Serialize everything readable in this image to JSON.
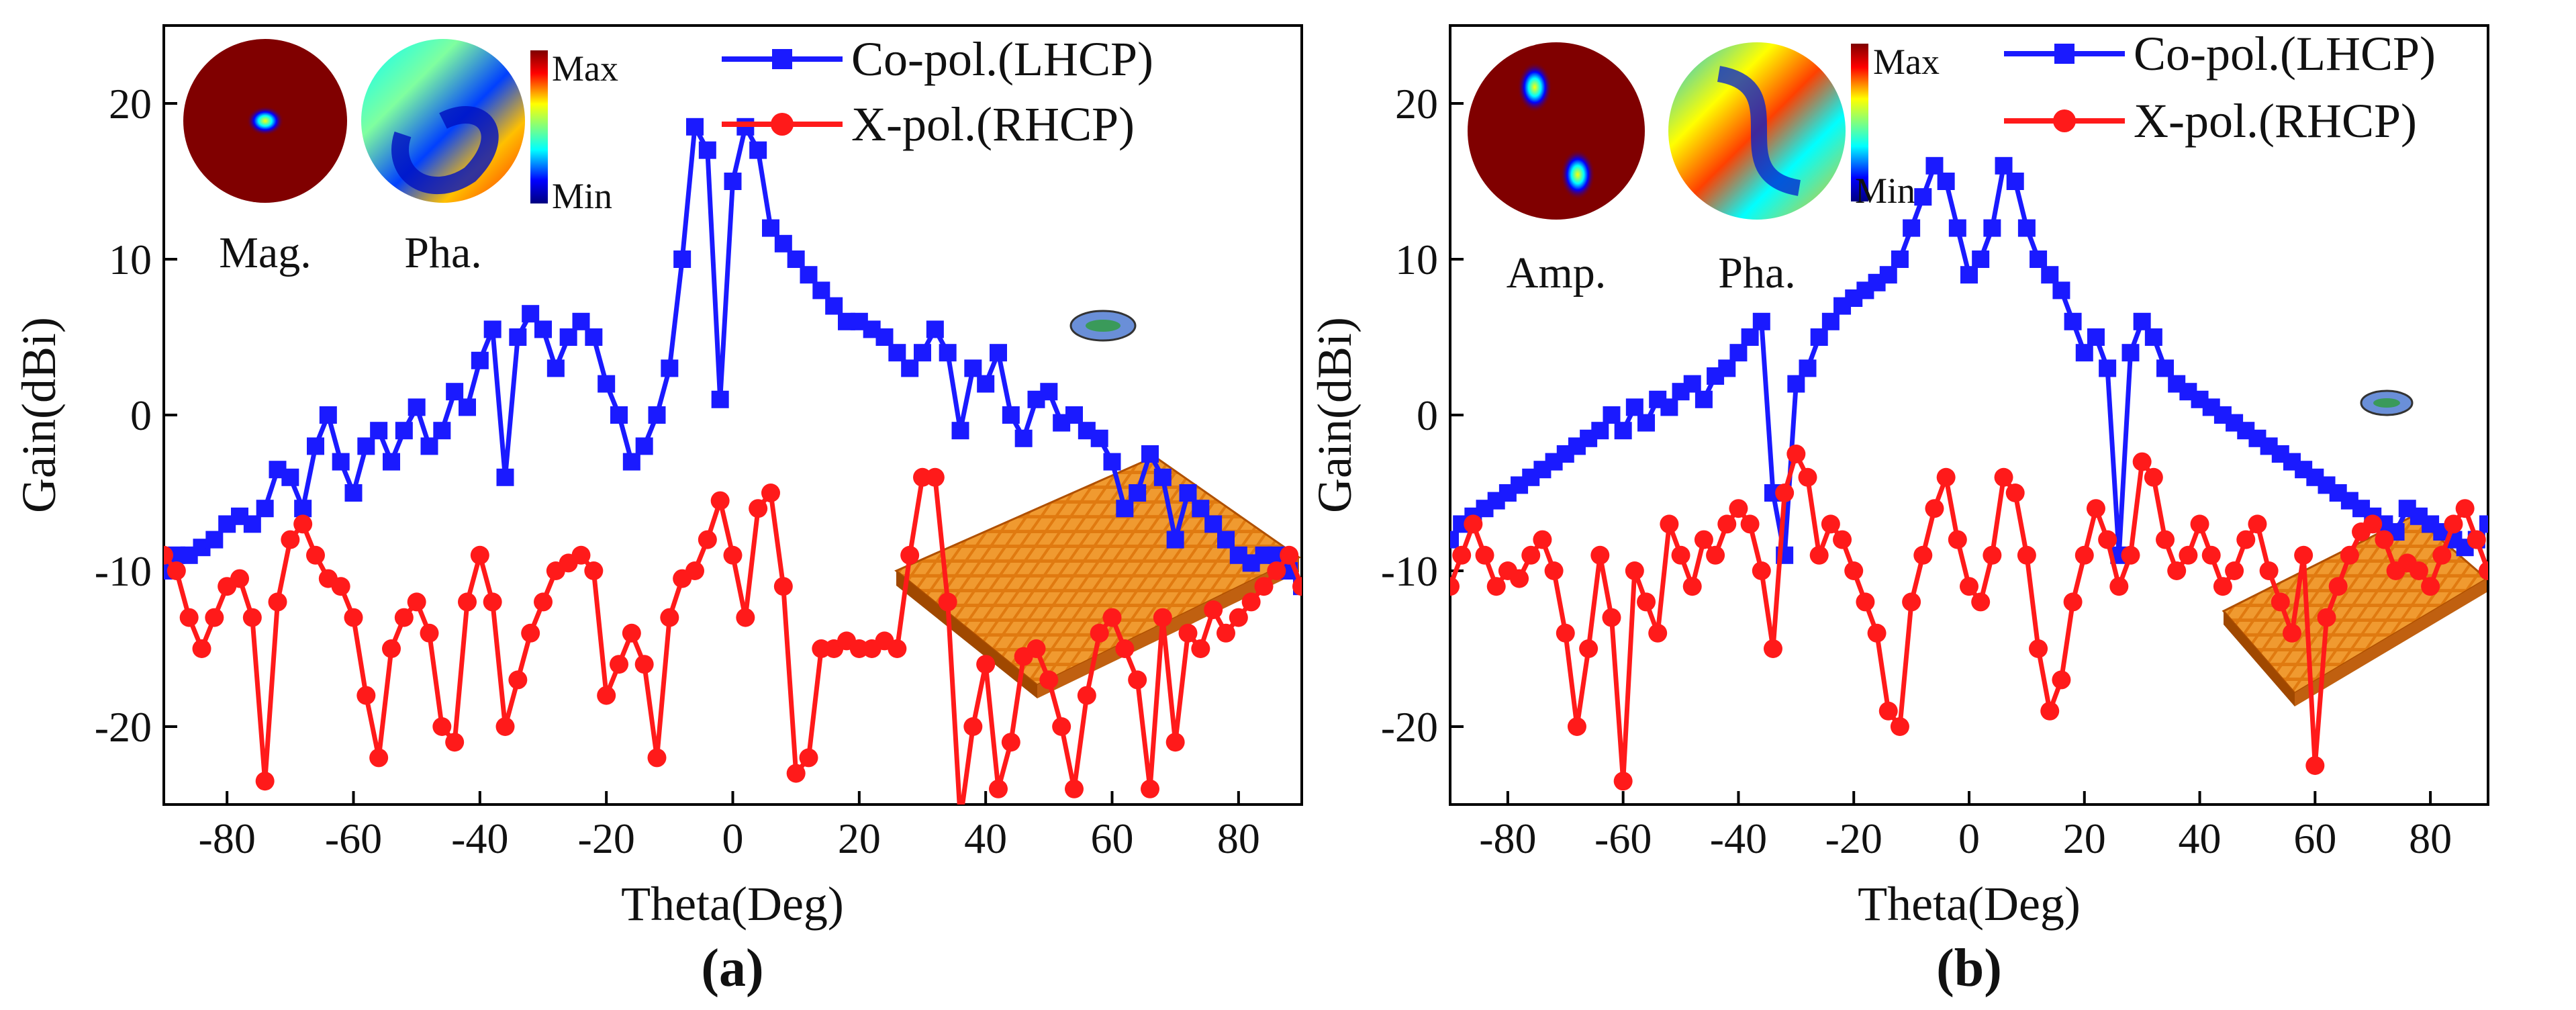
{
  "chart_data": [
    {
      "type": "line",
      "panel_label": "(a)",
      "xlabel": "Theta(Deg)",
      "ylabel": "Gain(dBi)",
      "xlim": [
        -90,
        90
      ],
      "ylim": [
        -25,
        25
      ],
      "xticks": [
        -80,
        -60,
        -40,
        -20,
        0,
        20,
        40,
        60,
        80
      ],
      "yticks": [
        -20,
        -10,
        0,
        10,
        20
      ],
      "inset_labels": [
        "Mag.",
        "Pha."
      ],
      "colorbar": {
        "max": "Max",
        "min": "Min"
      },
      "series": [
        {
          "name": "Co-pol.(LHCP)",
          "color": "#1a1aff",
          "marker": "square",
          "x": [
            -90,
            -88,
            -86,
            -84,
            -82,
            -80,
            -78,
            -76,
            -74,
            -72,
            -70,
            -68,
            -66,
            -64,
            -62,
            -60,
            -58,
            -56,
            -54,
            -52,
            -50,
            -48,
            -46,
            -44,
            -42,
            -40,
            -38,
            -36,
            -34,
            -32,
            -30,
            -28,
            -26,
            -24,
            -22,
            -20,
            -18,
            -16,
            -14,
            -12,
            -10,
            -8,
            -6,
            -4,
            -2,
            0,
            2,
            4,
            6,
            8,
            10,
            12,
            14,
            16,
            18,
            20,
            22,
            24,
            26,
            28,
            30,
            32,
            34,
            36,
            38,
            40,
            42,
            44,
            46,
            48,
            50,
            52,
            54,
            56,
            58,
            60,
            62,
            64,
            66,
            68,
            70,
            72,
            74,
            76,
            78,
            80,
            82,
            84,
            86,
            88,
            90
          ],
          "y": [
            -10,
            -9,
            -9,
            -8.5,
            -8,
            -7,
            -6.5,
            -7,
            -6,
            -3.5,
            -4,
            -6,
            -2,
            0,
            -3,
            -5,
            -2,
            -1,
            -3,
            -1,
            0.5,
            -2,
            -1,
            1.5,
            0.5,
            3.5,
            5.5,
            -4,
            5,
            6.5,
            5.5,
            3,
            5,
            6,
            5,
            2,
            0,
            -3,
            -2,
            0,
            3,
            10,
            18.5,
            17,
            1,
            15,
            18.5,
            17,
            12,
            11,
            10,
            9,
            8,
            7,
            6,
            6,
            5.5,
            5,
            4,
            3,
            4,
            5.5,
            4,
            -1,
            3,
            2,
            4,
            0,
            -1.5,
            1,
            1.5,
            -0.5,
            0,
            -1,
            -1.5,
            -3,
            -6,
            -5,
            -2.5,
            -4,
            -8,
            -5,
            -6,
            -7,
            -8,
            -9,
            -9.5,
            -9,
            -9,
            -10,
            -11
          ]
        },
        {
          "name": "X-pol.(RHCP)",
          "color": "#ff1a1a",
          "marker": "circle",
          "x": [
            -90,
            -88,
            -86,
            -84,
            -82,
            -80,
            -78,
            -76,
            -74,
            -72,
            -70,
            -68,
            -66,
            -64,
            -62,
            -60,
            -58,
            -56,
            -54,
            -52,
            -50,
            -48,
            -46,
            -44,
            -42,
            -40,
            -38,
            -36,
            -34,
            -32,
            -30,
            -28,
            -26,
            -24,
            -22,
            -20,
            -18,
            -16,
            -14,
            -12,
            -10,
            -8,
            -6,
            -4,
            -2,
            0,
            2,
            4,
            6,
            8,
            10,
            12,
            14,
            16,
            18,
            20,
            22,
            24,
            26,
            28,
            30,
            32,
            34,
            36,
            38,
            40,
            42,
            44,
            46,
            48,
            50,
            52,
            54,
            56,
            58,
            60,
            62,
            64,
            66,
            68,
            70,
            72,
            74,
            76,
            78,
            80,
            82,
            84,
            86,
            88,
            90
          ],
          "y": [
            -9,
            -10,
            -13,
            -15,
            -13,
            -11,
            -10.5,
            -13,
            -23.5,
            -12,
            -8,
            -7,
            -9,
            -10.5,
            -11,
            -13,
            -18,
            -22,
            -15,
            -13,
            -12,
            -14,
            -20,
            -21,
            -12,
            -9,
            -12,
            -20,
            -17,
            -14,
            -12,
            -10,
            -9.5,
            -9,
            -10,
            -18,
            -16,
            -14,
            -16,
            -22,
            -13,
            -10.5,
            -10,
            -8,
            -5.5,
            -9,
            -13,
            -6,
            -5,
            -11,
            -23,
            -22,
            -15,
            -15,
            -14.5,
            -15,
            -15,
            -14.5,
            -15,
            -9,
            -4,
            -4,
            -12,
            -26,
            -20,
            -16,
            -24,
            -21,
            -15.5,
            -15,
            -17,
            -20,
            -24,
            -18,
            -14,
            -13,
            -15,
            -17,
            -24,
            -13,
            -21,
            -14,
            -15,
            -12.5,
            -14,
            -13,
            -12,
            -11,
            -10,
            -9,
            -11
          ]
        }
      ]
    },
    {
      "type": "line",
      "panel_label": "(b)",
      "xlabel": "Theta(Deg)",
      "ylabel": "Gain(dBi)",
      "xlim": [
        -90,
        90
      ],
      "ylim": [
        -25,
        25
      ],
      "xticks": [
        -80,
        -60,
        -40,
        -20,
        0,
        20,
        40,
        60,
        80
      ],
      "yticks": [
        -20,
        -10,
        0,
        10,
        20
      ],
      "inset_labels": [
        "Amp.",
        "Pha."
      ],
      "colorbar": {
        "max": "Max",
        "min": "Min"
      },
      "series": [
        {
          "name": "Co-pol.(LHCP)",
          "color": "#1a1aff",
          "marker": "square",
          "x": [
            -90,
            -88,
            -86,
            -84,
            -82,
            -80,
            -78,
            -76,
            -74,
            -72,
            -70,
            -68,
            -66,
            -64,
            -62,
            -60,
            -58,
            -56,
            -54,
            -52,
            -50,
            -48,
            -46,
            -44,
            -42,
            -40,
            -38,
            -36,
            -34,
            -32,
            -30,
            -28,
            -26,
            -24,
            -22,
            -20,
            -18,
            -16,
            -14,
            -12,
            -10,
            -8,
            -6,
            -4,
            -2,
            0,
            2,
            4,
            6,
            8,
            10,
            12,
            14,
            16,
            18,
            20,
            22,
            24,
            26,
            28,
            30,
            32,
            34,
            36,
            38,
            40,
            42,
            44,
            46,
            48,
            50,
            52,
            54,
            56,
            58,
            60,
            62,
            64,
            66,
            68,
            70,
            72,
            74,
            76,
            78,
            80,
            82,
            84,
            86,
            88,
            90
          ],
          "y": [
            -8,
            -7,
            -6.5,
            -6,
            -5.5,
            -5,
            -4.5,
            -4,
            -3.5,
            -3,
            -2.5,
            -2,
            -1.5,
            -1,
            0,
            -1,
            0.5,
            -0.5,
            1,
            0.5,
            1.5,
            2,
            1,
            2.5,
            3,
            4,
            5,
            6,
            -5,
            -9,
            2,
            3,
            5,
            6,
            7,
            7.5,
            8,
            8.5,
            9,
            10,
            12,
            14,
            16,
            15,
            12,
            9,
            10,
            12,
            16,
            15,
            12,
            10,
            9,
            8,
            6,
            4,
            5,
            3,
            -9,
            4,
            6,
            5,
            3,
            2,
            1.5,
            1,
            0.5,
            0,
            -0.5,
            -1,
            -1.5,
            -2,
            -2.5,
            -3,
            -3.5,
            -4,
            -4.5,
            -5,
            -5.5,
            -6,
            -6.5,
            -7,
            -7.5,
            -6,
            -6.5,
            -7,
            -7.5,
            -8,
            -8.5,
            -8,
            -7
          ]
        },
        {
          "name": "X-pol.(RHCP)",
          "color": "#ff1a1a",
          "marker": "circle",
          "x": [
            -90,
            -88,
            -86,
            -84,
            -82,
            -80,
            -78,
            -76,
            -74,
            -72,
            -70,
            -68,
            -66,
            -64,
            -62,
            -60,
            -58,
            -56,
            -54,
            -52,
            -50,
            -48,
            -46,
            -44,
            -42,
            -40,
            -38,
            -36,
            -34,
            -32,
            -30,
            -28,
            -26,
            -24,
            -22,
            -20,
            -18,
            -16,
            -14,
            -12,
            -10,
            -8,
            -6,
            -4,
            -2,
            0,
            2,
            4,
            6,
            8,
            10,
            12,
            14,
            16,
            18,
            20,
            22,
            24,
            26,
            28,
            30,
            32,
            34,
            36,
            38,
            40,
            42,
            44,
            46,
            48,
            50,
            52,
            54,
            56,
            58,
            60,
            62,
            64,
            66,
            68,
            70,
            72,
            74,
            76,
            78,
            80,
            82,
            84,
            86,
            88,
            90
          ],
          "y": [
            -11,
            -9,
            -7,
            -9,
            -11,
            -10,
            -10.5,
            -9,
            -8,
            -10,
            -14,
            -20,
            -15,
            -9,
            -13,
            -23.5,
            -10,
            -12,
            -14,
            -7,
            -9,
            -11,
            -8,
            -9,
            -7,
            -6,
            -7,
            -10,
            -15,
            -5,
            -2.5,
            -4,
            -9,
            -7,
            -8,
            -10,
            -12,
            -14,
            -19,
            -20,
            -12,
            -9,
            -6,
            -4,
            -8,
            -11,
            -12,
            -9,
            -4,
            -5,
            -9,
            -15,
            -19,
            -17,
            -12,
            -9,
            -6,
            -8,
            -11,
            -9,
            -3,
            -4,
            -8,
            -10,
            -9,
            -7,
            -9,
            -11,
            -10,
            -8,
            -7,
            -10,
            -12,
            -14,
            -9,
            -22.5,
            -13,
            -11,
            -9,
            -7.5,
            -7,
            -8,
            -10,
            -9.5,
            -10,
            -11,
            -9,
            -7,
            -6,
            -8,
            -10
          ]
        }
      ]
    }
  ]
}
